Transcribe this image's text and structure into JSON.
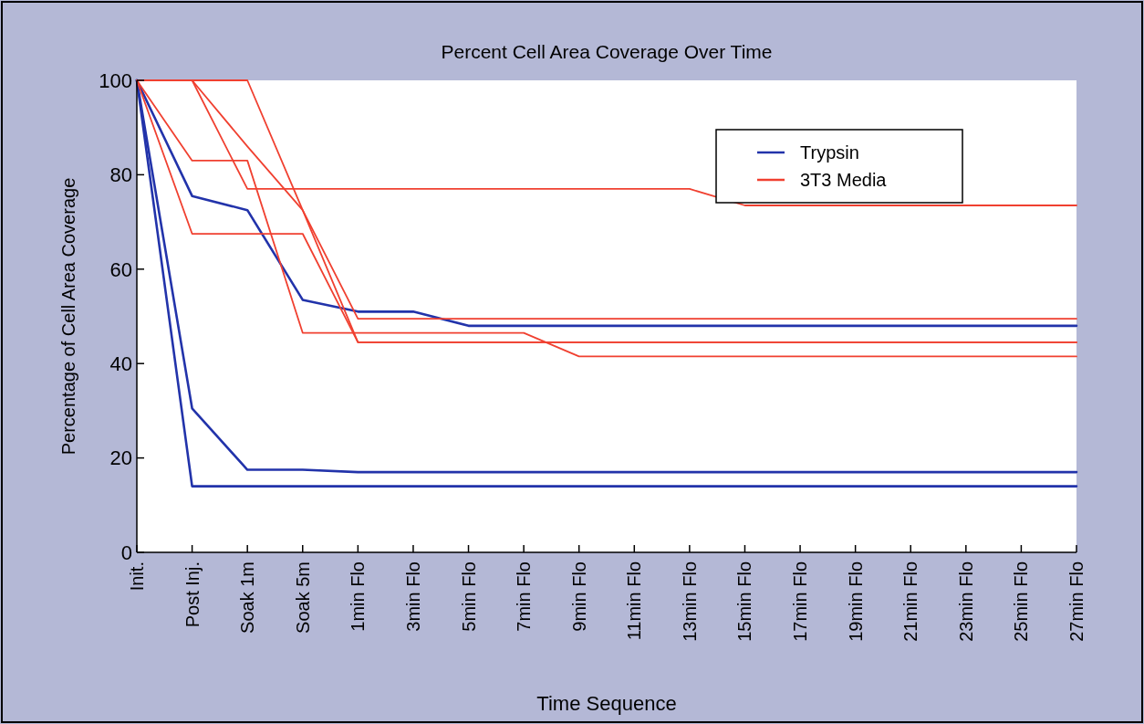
{
  "chart_data": {
    "type": "line",
    "title": "Percent Cell Area Coverage Over Time",
    "xlabel": "Time Sequence",
    "ylabel": "Percentage of Cell Area Coverage",
    "categories": [
      "Init.",
      "Post Inj.",
      "Soak 1m",
      "Soak 5m",
      "1min Flo",
      "3min Flo",
      "5min Flo",
      "7min Flo",
      "9min Flo",
      "11min Flo",
      "13min Flo",
      "15min Flo",
      "17min Flo",
      "19min Flo",
      "21min Flo",
      "23min Flo",
      "25min Flo",
      "27min Flo"
    ],
    "series": [
      {
        "name": "Trypsin",
        "color": "#2233aa",
        "values": [
          100,
          75.5,
          72.5,
          53.5,
          51,
          51,
          48,
          48,
          48,
          48,
          48,
          48,
          48,
          48,
          48,
          48,
          48,
          48
        ]
      },
      {
        "color": "#2233aa",
        "values": [
          100,
          30.5,
          17.5,
          17.5,
          17,
          17,
          17,
          17,
          17,
          17,
          17,
          17,
          17,
          17,
          17,
          17,
          17,
          17
        ]
      },
      {
        "color": "#2233aa",
        "values": [
          100,
          14,
          14,
          14,
          14,
          14,
          14,
          14,
          14,
          14,
          14,
          14,
          14,
          14,
          14,
          14,
          14,
          14
        ]
      },
      {
        "name": "3T3 Media",
        "color": "#f04030",
        "values": [
          100,
          83,
          83,
          46.5,
          46.5,
          46.5,
          46.5,
          46.5,
          41.5,
          41.5,
          41.5,
          41.5,
          41.5,
          41.5,
          41.5,
          41.5,
          41.5,
          41.5
        ]
      },
      {
        "color": "#f04030",
        "values": [
          100,
          67.5,
          67.5,
          67.5,
          44.5,
          44.5,
          44.5,
          44.5,
          44.5,
          44.5,
          44.5,
          44.5,
          44.5,
          44.5,
          44.5,
          44.5,
          44.5,
          44.5
        ]
      },
      {
        "color": "#f04030",
        "values": [
          100,
          100,
          100,
          72.5,
          49.5,
          49.5,
          49.5,
          49.5,
          49.5,
          49.5,
          49.5,
          49.5,
          49.5,
          49.5,
          49.5,
          49.5,
          49.5,
          49.5
        ]
      },
      {
        "color": "#f04030",
        "values": [
          100,
          100,
          77,
          77,
          77,
          77,
          77,
          77,
          77,
          77,
          77,
          73.5,
          73.5,
          73.5,
          73.5,
          73.5,
          73.5,
          73.5
        ]
      },
      {
        "color": "#f04030",
        "values": [
          100,
          100,
          86,
          72.5,
          44.5,
          44.5,
          44.5,
          44.5,
          44.5,
          44.5,
          44.5,
          44.5,
          44.5,
          44.5,
          44.5,
          44.5,
          44.5,
          44.5
        ]
      }
    ],
    "ylim": [
      0,
      100
    ],
    "yticks": [
      0,
      20,
      40,
      60,
      80,
      100
    ],
    "grid": false,
    "legend": "top right",
    "marker": "none",
    "line_style": "solid"
  }
}
